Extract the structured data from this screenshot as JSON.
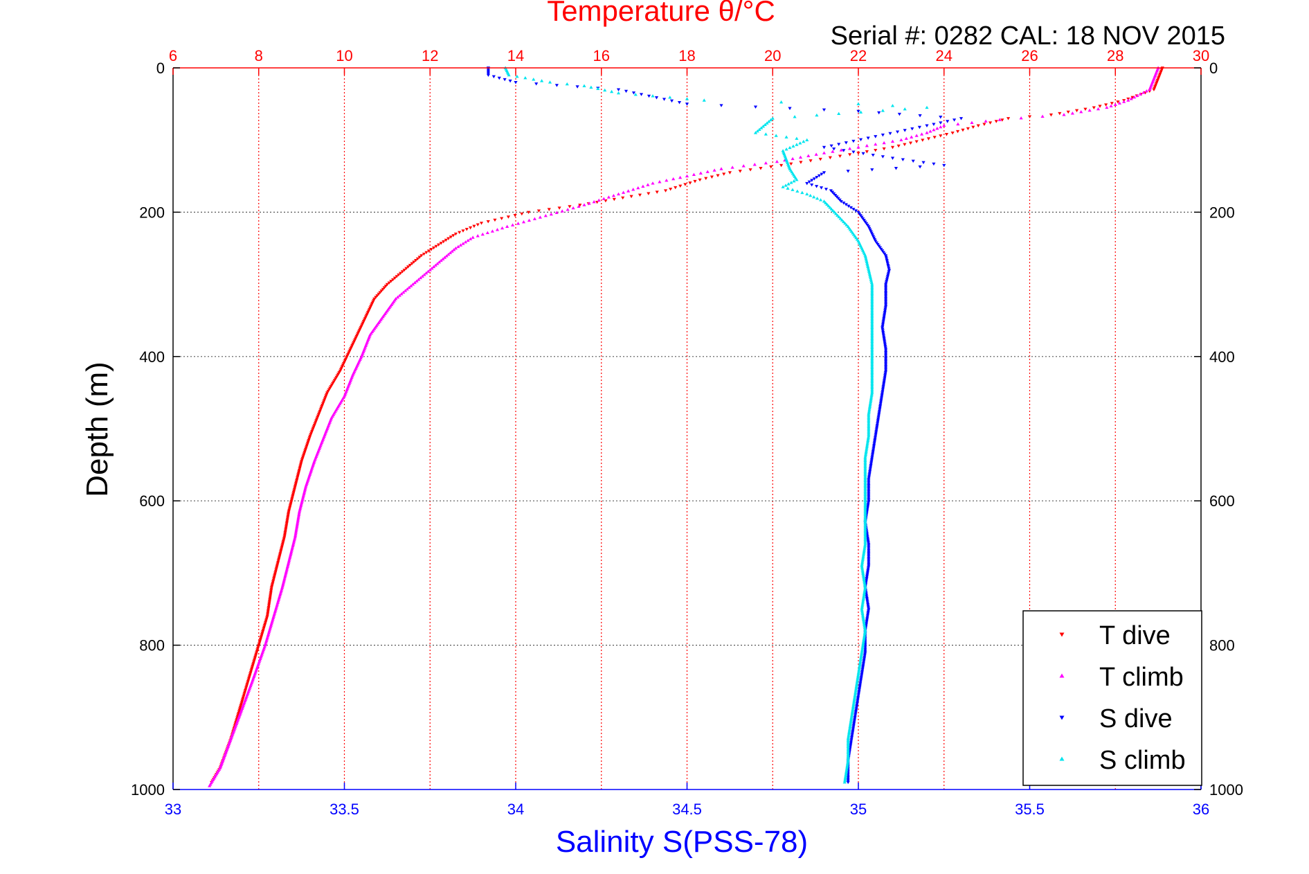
{
  "chart_data": {
    "type": "scatter",
    "title": "Temperature θ/°C",
    "annotation": "Serial #: 0282  CAL: 18 NOV 2015",
    "ylabel": "Depth (m)",
    "xlabel_bottom": "Salinity S(PSS-78)",
    "xlabel_top": "Temperature θ/°C",
    "y_reversed": true,
    "ylim": [
      0,
      1000
    ],
    "xlim_salinity": [
      33,
      36
    ],
    "xlim_temperature": [
      6,
      30
    ],
    "y_ticks": [
      0,
      200,
      400,
      600,
      800,
      1000
    ],
    "x_ticks_salinity": [
      33,
      33.5,
      34,
      34.5,
      35,
      35.5,
      36
    ],
    "x_ticks_temperature": [
      6,
      8,
      10,
      12,
      14,
      16,
      18,
      20,
      22,
      24,
      26,
      28,
      30
    ],
    "grid": true,
    "legend_position": "bottom-right",
    "colors": {
      "temperature_axis": "#ff0000",
      "salinity_axis": "#0000ff",
      "t_dive": "#ff0000",
      "t_climb": "#ff00ff",
      "s_dive": "#0000ff",
      "s_climb": "#00e5ee"
    },
    "series": [
      {
        "name": "T dive",
        "axis": "temperature",
        "marker": "triangle-down",
        "points": [
          [
            29.1,
            0
          ],
          [
            29.0,
            15
          ],
          [
            28.9,
            30
          ],
          [
            28.2,
            45
          ],
          [
            27.5,
            55
          ],
          [
            26.5,
            65
          ],
          [
            25.5,
            70
          ],
          [
            24.8,
            80
          ],
          [
            24.2,
            90
          ],
          [
            23.5,
            100
          ],
          [
            22.8,
            110
          ],
          [
            21.8,
            120
          ],
          [
            20.2,
            135
          ],
          [
            19.0,
            145
          ],
          [
            18.3,
            155
          ],
          [
            17.5,
            170
          ],
          [
            16.5,
            180
          ],
          [
            15.5,
            190
          ],
          [
            14.3,
            200
          ],
          [
            13.2,
            215
          ],
          [
            12.6,
            230
          ],
          [
            12.2,
            245
          ],
          [
            11.8,
            260
          ],
          [
            11.4,
            280
          ],
          [
            11.0,
            300
          ],
          [
            10.7,
            320
          ],
          [
            10.5,
            345
          ],
          [
            10.3,
            370
          ],
          [
            10.1,
            395
          ],
          [
            9.9,
            420
          ],
          [
            9.6,
            450
          ],
          [
            9.4,
            480
          ],
          [
            9.2,
            510
          ],
          [
            9.0,
            545
          ],
          [
            8.85,
            580
          ],
          [
            8.7,
            615
          ],
          [
            8.6,
            650
          ],
          [
            8.45,
            685
          ],
          [
            8.3,
            720
          ],
          [
            8.2,
            760
          ],
          [
            8.0,
            800
          ],
          [
            7.75,
            850
          ],
          [
            7.55,
            890
          ],
          [
            7.35,
            930
          ],
          [
            7.1,
            970
          ],
          [
            6.9,
            990
          ]
        ]
      },
      {
        "name": "T climb",
        "axis": "temperature",
        "marker": "triangle-up",
        "points": [
          [
            29.0,
            0
          ],
          [
            28.9,
            15
          ],
          [
            28.8,
            30
          ],
          [
            28.3,
            45
          ],
          [
            27.8,
            55
          ],
          [
            26.8,
            65
          ],
          [
            25.3,
            72
          ],
          [
            24.0,
            80
          ],
          [
            23.6,
            90
          ],
          [
            23.0,
            100
          ],
          [
            22.0,
            110
          ],
          [
            21.2,
            118
          ],
          [
            20.1,
            130
          ],
          [
            18.8,
            140
          ],
          [
            18.0,
            150
          ],
          [
            17.2,
            160
          ],
          [
            16.4,
            175
          ],
          [
            15.6,
            190
          ],
          [
            14.7,
            205
          ],
          [
            13.8,
            220
          ],
          [
            13.0,
            235
          ],
          [
            12.6,
            250
          ],
          [
            12.3,
            265
          ],
          [
            12.0,
            280
          ],
          [
            11.6,
            300
          ],
          [
            11.2,
            320
          ],
          [
            10.9,
            345
          ],
          [
            10.6,
            370
          ],
          [
            10.4,
            400
          ],
          [
            10.2,
            425
          ],
          [
            10.0,
            455
          ],
          [
            9.7,
            485
          ],
          [
            9.5,
            515
          ],
          [
            9.3,
            545
          ],
          [
            9.1,
            580
          ],
          [
            8.95,
            615
          ],
          [
            8.85,
            650
          ],
          [
            8.7,
            685
          ],
          [
            8.55,
            720
          ],
          [
            8.35,
            760
          ],
          [
            8.15,
            800
          ],
          [
            7.85,
            850
          ],
          [
            7.6,
            890
          ],
          [
            7.35,
            930
          ],
          [
            7.1,
            970
          ],
          [
            6.85,
            995
          ]
        ]
      },
      {
        "name": "S dive",
        "axis": "salinity",
        "marker": "triangle-down",
        "points": [
          [
            33.92,
            0
          ],
          [
            33.92,
            10
          ],
          [
            34.0,
            20
          ],
          [
            34.3,
            30
          ],
          [
            34.5,
            50
          ],
          [
            35.0,
            60
          ],
          [
            35.3,
            70
          ],
          [
            35.2,
            80
          ],
          [
            35.05,
            95
          ],
          [
            34.9,
            110
          ],
          [
            35.1,
            125
          ],
          [
            35.25,
            135
          ],
          [
            34.9,
            145
          ],
          [
            34.85,
            160
          ],
          [
            34.92,
            170
          ],
          [
            34.95,
            185
          ],
          [
            35.0,
            200
          ],
          [
            35.03,
            220
          ],
          [
            35.05,
            240
          ],
          [
            35.08,
            260
          ],
          [
            35.09,
            280
          ],
          [
            35.08,
            300
          ],
          [
            35.08,
            330
          ],
          [
            35.07,
            360
          ],
          [
            35.08,
            390
          ],
          [
            35.08,
            420
          ],
          [
            35.07,
            450
          ],
          [
            35.06,
            480
          ],
          [
            35.05,
            510
          ],
          [
            35.04,
            540
          ],
          [
            35.03,
            570
          ],
          [
            35.03,
            600
          ],
          [
            35.02,
            630
          ],
          [
            35.03,
            660
          ],
          [
            35.03,
            690
          ],
          [
            35.02,
            720
          ],
          [
            35.03,
            750
          ],
          [
            35.02,
            780
          ],
          [
            35.02,
            810
          ],
          [
            35.01,
            840
          ],
          [
            35.0,
            870
          ],
          [
            34.99,
            900
          ],
          [
            34.98,
            930
          ],
          [
            34.97,
            960
          ],
          [
            34.97,
            990
          ]
        ]
      },
      {
        "name": "S climb",
        "axis": "salinity",
        "marker": "triangle-up",
        "points": [
          [
            33.97,
            0
          ],
          [
            33.98,
            10
          ],
          [
            34.1,
            20
          ],
          [
            34.2,
            25
          ],
          [
            34.3,
            35
          ],
          [
            34.55,
            45
          ],
          [
            35.0,
            50
          ],
          [
            35.2,
            55
          ],
          [
            34.75,
            70
          ],
          [
            34.7,
            90
          ],
          [
            34.85,
            100
          ],
          [
            34.78,
            115
          ],
          [
            34.8,
            140
          ],
          [
            34.82,
            155
          ],
          [
            34.78,
            165
          ],
          [
            34.85,
            175
          ],
          [
            34.9,
            185
          ],
          [
            34.93,
            200
          ],
          [
            34.97,
            220
          ],
          [
            35.0,
            240
          ],
          [
            35.02,
            260
          ],
          [
            35.03,
            280
          ],
          [
            35.04,
            300
          ],
          [
            35.04,
            330
          ],
          [
            35.04,
            360
          ],
          [
            35.04,
            390
          ],
          [
            35.04,
            420
          ],
          [
            35.04,
            450
          ],
          [
            35.03,
            480
          ],
          [
            35.03,
            510
          ],
          [
            35.02,
            540
          ],
          [
            35.02,
            570
          ],
          [
            35.02,
            600
          ],
          [
            35.02,
            630
          ],
          [
            35.02,
            660
          ],
          [
            35.01,
            690
          ],
          [
            35.02,
            720
          ],
          [
            35.01,
            750
          ],
          [
            35.02,
            780
          ],
          [
            35.01,
            810
          ],
          [
            35.0,
            840
          ],
          [
            34.99,
            870
          ],
          [
            34.98,
            900
          ],
          [
            34.97,
            930
          ],
          [
            34.97,
            960
          ],
          [
            34.96,
            990
          ]
        ]
      }
    ]
  }
}
